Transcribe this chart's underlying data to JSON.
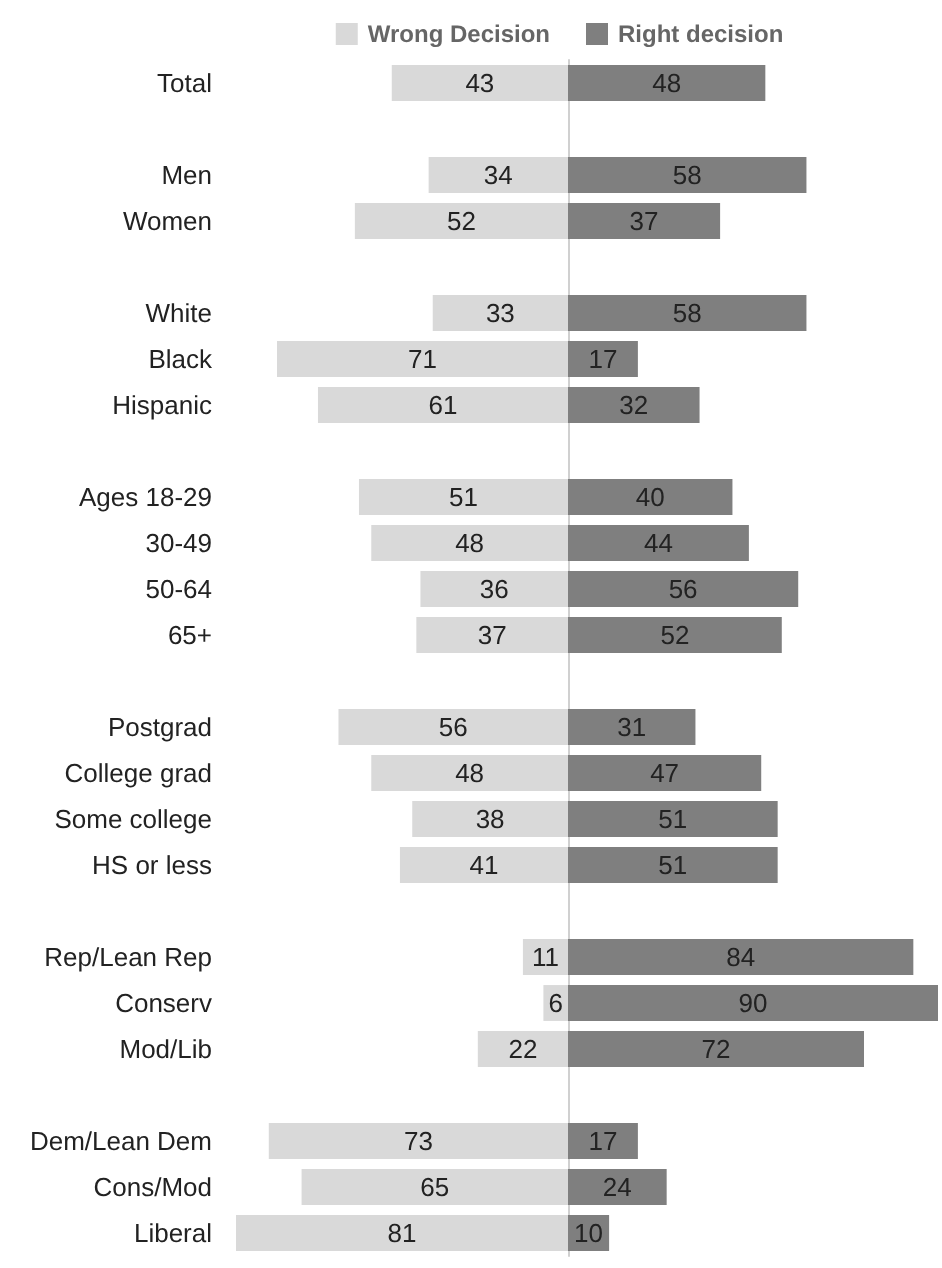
{
  "chart_data": [
    {
      "type": "bar",
      "orientation": "horizontal",
      "data_labels": true,
      "legend": "top",
      "grid": false,
      "tick_labels": "y",
      "xlim": [
        81,
        0
      ],
      "categories": [
        "Total",
        null,
        "Men",
        "Women",
        null,
        "White",
        "Black",
        "Hispanic",
        null,
        "Ages 18-29",
        "30-49",
        "50-64",
        "65+",
        null,
        "Postgrad",
        "College grad",
        "Some college",
        "HS or less",
        null,
        "Rep/Lean Rep",
        "Conserv",
        "Mod/Lib",
        null,
        "Dem/Lean Dem",
        "Cons/Mod",
        "Liberal"
      ],
      "series": [
        {
          "name": "Wrong Decision",
          "color": "#d9d9d9",
          "values": [
            43,
            null,
            34,
            52,
            null,
            33,
            71,
            61,
            null,
            51,
            48,
            36,
            37,
            null,
            56,
            48,
            38,
            41,
            null,
            11,
            6,
            22,
            null,
            73,
            65,
            81
          ]
        }
      ]
    },
    {
      "type": "bar",
      "orientation": "horizontal",
      "data_labels": true,
      "legend": "top",
      "grid": false,
      "tick_labels": false,
      "xlim": [
        0,
        90
      ],
      "categories": [
        null,
        null,
        null,
        null,
        null,
        null,
        null,
        null,
        null,
        null,
        null,
        null,
        null,
        null,
        null,
        null,
        null,
        null,
        null,
        null,
        null,
        null,
        null,
        null,
        null,
        null
      ],
      "series": [
        {
          "name": "Right decision",
          "color": "#7f7f7f",
          "values": [
            48,
            null,
            58,
            37,
            null,
            58,
            17,
            32,
            null,
            40,
            44,
            56,
            52,
            null,
            31,
            47,
            51,
            51,
            null,
            84,
            90,
            72,
            null,
            17,
            24,
            10
          ]
        }
      ]
    }
  ]
}
